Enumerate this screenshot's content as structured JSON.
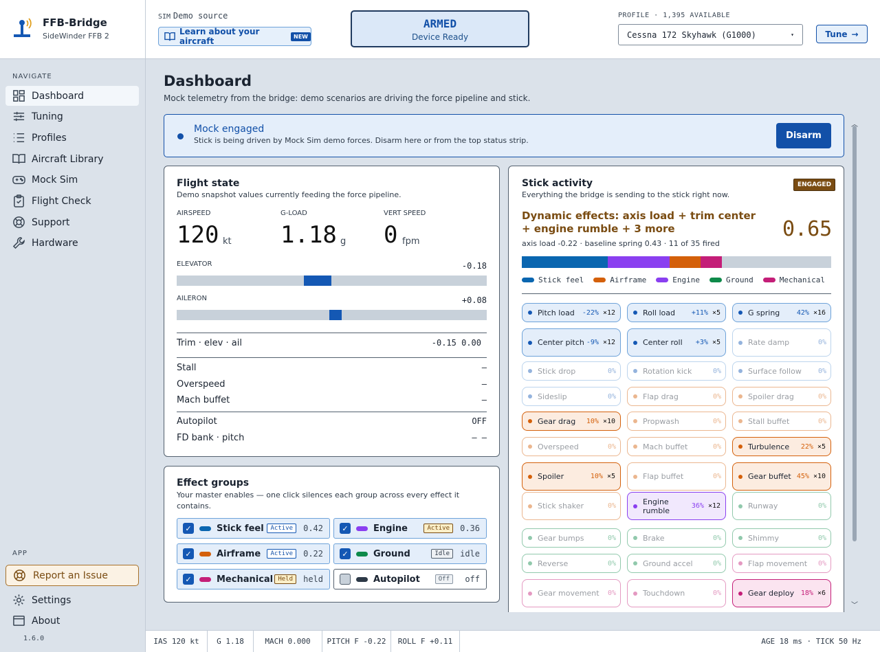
{
  "brand": {
    "title": "FFB-Bridge",
    "subtitle": "SideWinder FFB 2"
  },
  "header": {
    "sim_label": "SIM",
    "sim_value": "Demo source",
    "learn_label": "Learn about your aircraft",
    "learn_badge": "NEW",
    "armed_title": "ARMED",
    "armed_sub": "Device Ready",
    "profile_label": "PROFILE · 1,395 AVAILABLE",
    "profile_value": "Cessna 172 Skyhawk (G1000)",
    "tune_label": "Tune"
  },
  "sidebar": {
    "nav_label": "NAVIGATE",
    "items": [
      "Dashboard",
      "Tuning",
      "Profiles",
      "Aircraft Library",
      "Mock Sim",
      "Flight Check",
      "Support",
      "Hardware"
    ],
    "app_label": "APP",
    "report": "Report an Issue",
    "settings": "Settings",
    "about": "About",
    "version": "1.6.0"
  },
  "page": {
    "title": "Dashboard",
    "subtitle": "Mock telemetry from the bridge: demo scenarios are driving the force pipeline and stick."
  },
  "mock": {
    "title": "Mock engaged",
    "text": "Stick is being driven by Mock Sim demo forces. Disarm here or from the top status strip.",
    "button": "Disarm"
  },
  "flight": {
    "title": "Flight state",
    "subtitle": "Demo snapshot values currently feeding the force pipeline.",
    "airspeed_label": "AIRSPEED",
    "airspeed": "120",
    "airspeed_unit": "kt",
    "gload_label": "G-LOAD",
    "gload": "1.18",
    "gload_unit": "g",
    "vs_label": "VERT SPEED",
    "vs": "0",
    "vs_unit": "fpm",
    "elevator_label": "ELEVATOR",
    "elevator": "-0.18",
    "elevator_value": -0.18,
    "aileron_label": "AILERON",
    "aileron": "+0.08",
    "aileron_value": 0.08,
    "trim_label": "Trim · elev · ail",
    "trim_value": "-0.15 0.00",
    "stall": "Stall",
    "stall_v": "–",
    "overspeed": "Overspeed",
    "overspeed_v": "–",
    "mach": "Mach buffet",
    "mach_v": "–",
    "ap": "Autopilot",
    "ap_v": "OFF",
    "fd": "FD bank · pitch",
    "fd_v": "– –"
  },
  "groups": {
    "title": "Effect groups",
    "subtitle": "Your master enables — one click silences each group across every effect it contains.",
    "items": [
      {
        "name": "Stick feel",
        "tag": "Active",
        "val": "0.42",
        "color": "#0a66b0",
        "on": true
      },
      {
        "name": "Engine",
        "tag": "Active",
        "val": "0.36",
        "color": "#8a3ff0",
        "on": true
      },
      {
        "name": "Airframe",
        "tag": "Active",
        "val": "0.22",
        "color": "#d4600a",
        "on": true
      },
      {
        "name": "Ground",
        "tag": "Idle",
        "val": "idle",
        "color": "#0e8a4a",
        "on": true
      },
      {
        "name": "Mechanical",
        "tag": "Held",
        "val": "held",
        "color": "#c41e78",
        "on": true
      },
      {
        "name": "Autopilot",
        "tag": "Off",
        "val": "off",
        "color": "#2d3947",
        "on": false
      }
    ]
  },
  "stick": {
    "title": "Stick activity",
    "subtitle": "Everything the bridge is sending to the stick right now.",
    "badge": "ENGAGED",
    "dynamic": "Dynamic effects: axis load + trim center + engine rumble + 3 more",
    "score": "0.65",
    "meta": "axis load -0.22 · baseline spring 0.43 · 11 of 35 fired",
    "bar": [
      {
        "color": "#0a66b0",
        "frac": 0.277
      },
      {
        "color": "#8a3ff0",
        "frac": 0.2
      },
      {
        "color": "#d4600a",
        "frac": 0.1
      },
      {
        "color": "#c41e78",
        "frac": 0.07
      }
    ],
    "legend": [
      {
        "name": "Stick feel",
        "color": "#0a66b0"
      },
      {
        "name": "Airframe",
        "color": "#d4600a"
      },
      {
        "name": "Engine",
        "color": "#8a3ff0"
      },
      {
        "name": "Ground",
        "color": "#0e8a4a"
      },
      {
        "name": "Mechanical",
        "color": "#c41e78"
      }
    ],
    "chips": [
      {
        "name": "Pitch load",
        "pct": "-22%",
        "mult": "×12",
        "group": "blue",
        "on": true
      },
      {
        "name": "Roll load",
        "pct": "+11%",
        "mult": "×5",
        "group": "blue",
        "on": true
      },
      {
        "name": "G spring",
        "pct": "42%",
        "mult": "×16",
        "group": "blue",
        "on": true
      },
      {
        "name": "Center pitch",
        "pct": "-9%",
        "mult": "×12",
        "group": "blue",
        "on": true
      },
      {
        "name": "Center roll",
        "pct": "+3%",
        "mult": "×5",
        "group": "blue",
        "on": true
      },
      {
        "name": "Rate damp",
        "pct": "0%",
        "mult": "",
        "group": "blue",
        "on": false
      },
      {
        "name": "Stick drop",
        "pct": "0%",
        "mult": "",
        "group": "blue",
        "on": false
      },
      {
        "name": "Rotation kick",
        "pct": "0%",
        "mult": "",
        "group": "blue",
        "on": false
      },
      {
        "name": "Surface follow",
        "pct": "0%",
        "mult": "",
        "group": "blue",
        "on": false
      },
      {
        "name": "Sideslip",
        "pct": "0%",
        "mult": "",
        "group": "blue",
        "on": false
      },
      {
        "name": "Flap drag",
        "pct": "0%",
        "mult": "",
        "group": "orange",
        "on": false
      },
      {
        "name": "Spoiler drag",
        "pct": "0%",
        "mult": "",
        "group": "orange",
        "on": false
      },
      {
        "name": "Gear drag",
        "pct": "10%",
        "mult": "×10",
        "group": "orange",
        "on": true
      },
      {
        "name": "Propwash",
        "pct": "0%",
        "mult": "",
        "group": "orange",
        "on": false
      },
      {
        "name": "Stall buffet",
        "pct": "0%",
        "mult": "",
        "group": "orange",
        "on": false
      },
      {
        "name": "Overspeed",
        "pct": "0%",
        "mult": "",
        "group": "orange",
        "on": false
      },
      {
        "name": "Mach buffet",
        "pct": "0%",
        "mult": "",
        "group": "orange",
        "on": false
      },
      {
        "name": "Turbulence",
        "pct": "22%",
        "mult": "×5",
        "group": "orange",
        "on": true
      },
      {
        "name": "Spoiler",
        "pct": "10%",
        "mult": "×5",
        "group": "orange",
        "on": true
      },
      {
        "name": "Flap buffet",
        "pct": "0%",
        "mult": "",
        "group": "orange",
        "on": false
      },
      {
        "name": "Gear buffet",
        "pct": "45%",
        "mult": "×10",
        "group": "orange",
        "on": true
      },
      {
        "name": "Stick shaker",
        "pct": "0%",
        "mult": "",
        "group": "orange",
        "on": false
      },
      {
        "name": "Engine rumble",
        "pct": "36%",
        "mult": "×12",
        "group": "purple",
        "on": true
      },
      {
        "name": "Runway",
        "pct": "0%",
        "mult": "",
        "group": "green",
        "on": false
      },
      {
        "name": "Gear bumps",
        "pct": "0%",
        "mult": "",
        "group": "green",
        "on": false
      },
      {
        "name": "Brake",
        "pct": "0%",
        "mult": "",
        "group": "green",
        "on": false
      },
      {
        "name": "Shimmy",
        "pct": "0%",
        "mult": "",
        "group": "green",
        "on": false
      },
      {
        "name": "Reverse",
        "pct": "0%",
        "mult": "",
        "group": "green",
        "on": false
      },
      {
        "name": "Ground accel",
        "pct": "0%",
        "mult": "",
        "group": "green",
        "on": false
      },
      {
        "name": "Flap movement",
        "pct": "0%",
        "mult": "",
        "group": "pink",
        "on": false
      },
      {
        "name": "Gear movement",
        "pct": "0%",
        "mult": "",
        "group": "pink",
        "on": false
      },
      {
        "name": "Touchdown",
        "pct": "0%",
        "mult": "",
        "group": "pink",
        "on": false
      },
      {
        "name": "Gear deploy",
        "pct": "18%",
        "mult": "×6",
        "group": "pink",
        "on": true
      }
    ]
  },
  "footer": {
    "ias": "IAS 120 kt",
    "g": "G 1.18",
    "mach": "MACH 0.000",
    "pitch": "PITCH F -0.22",
    "roll": "ROLL F +0.11",
    "age": "AGE 18 ms",
    "tick": "TICK 50 Hz"
  }
}
